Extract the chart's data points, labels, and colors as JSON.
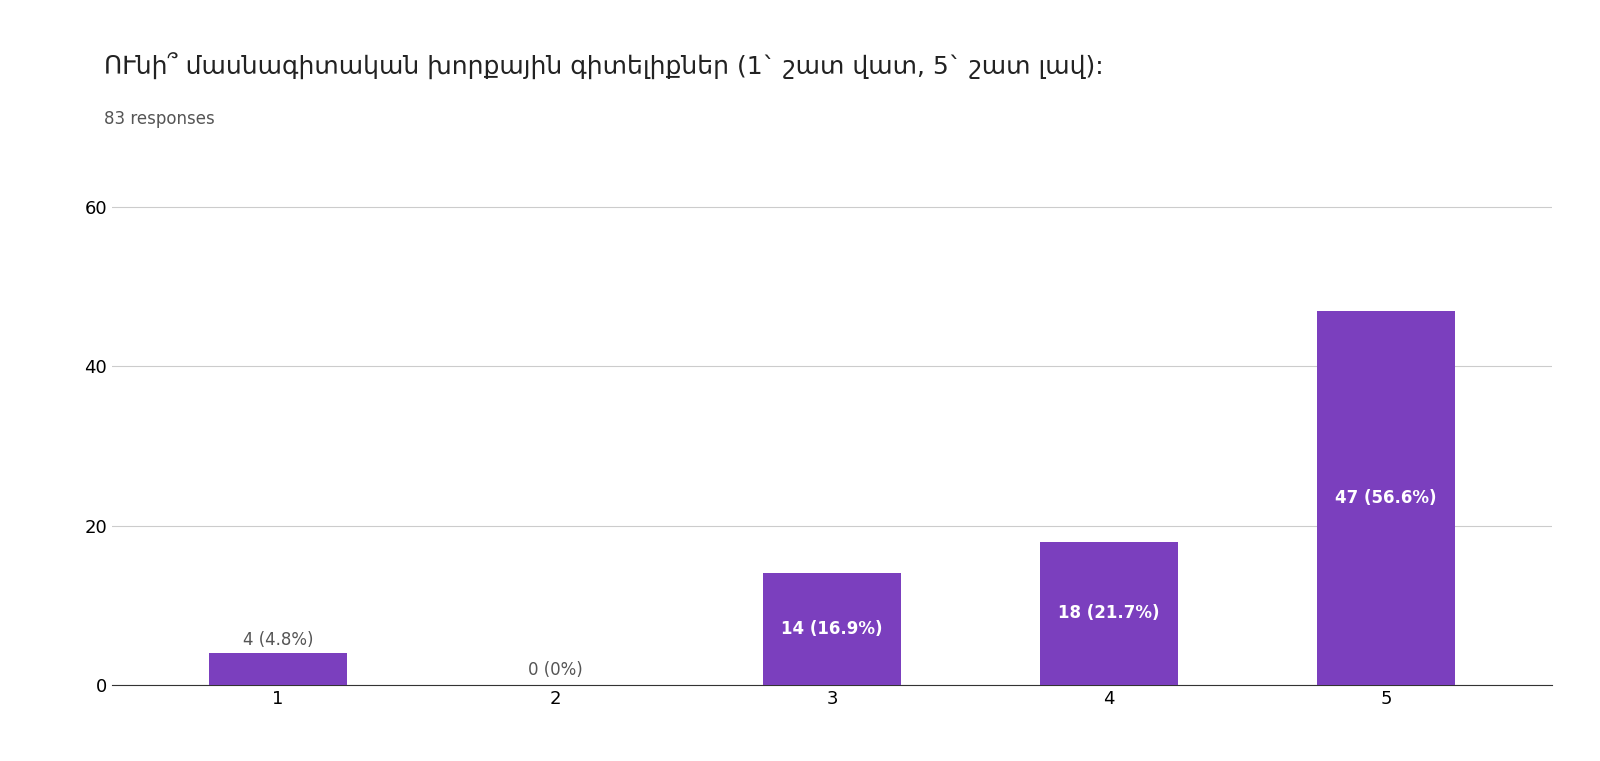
{
  "subtitle": "83 responses",
  "categories": [
    "1",
    "2",
    "3",
    "4",
    "5"
  ],
  "values": [
    4,
    0,
    14,
    18,
    47
  ],
  "labels": [
    "4 (4.8%)",
    "0 (0%)",
    "14 (16.9%)",
    "18 (21.7%)",
    "47 (56.6%)"
  ],
  "bar_color": "#7B3FBE",
  "label_color_inside": "#ffffff",
  "label_color_outside": "#555555",
  "background_color": "#ffffff",
  "ylim": [
    0,
    65
  ],
  "yticks": [
    0,
    20,
    40,
    60
  ],
  "grid_color": "#cccccc",
  "title_fontsize": 18,
  "subtitle_fontsize": 12,
  "tick_fontsize": 13,
  "label_fontsize": 12
}
